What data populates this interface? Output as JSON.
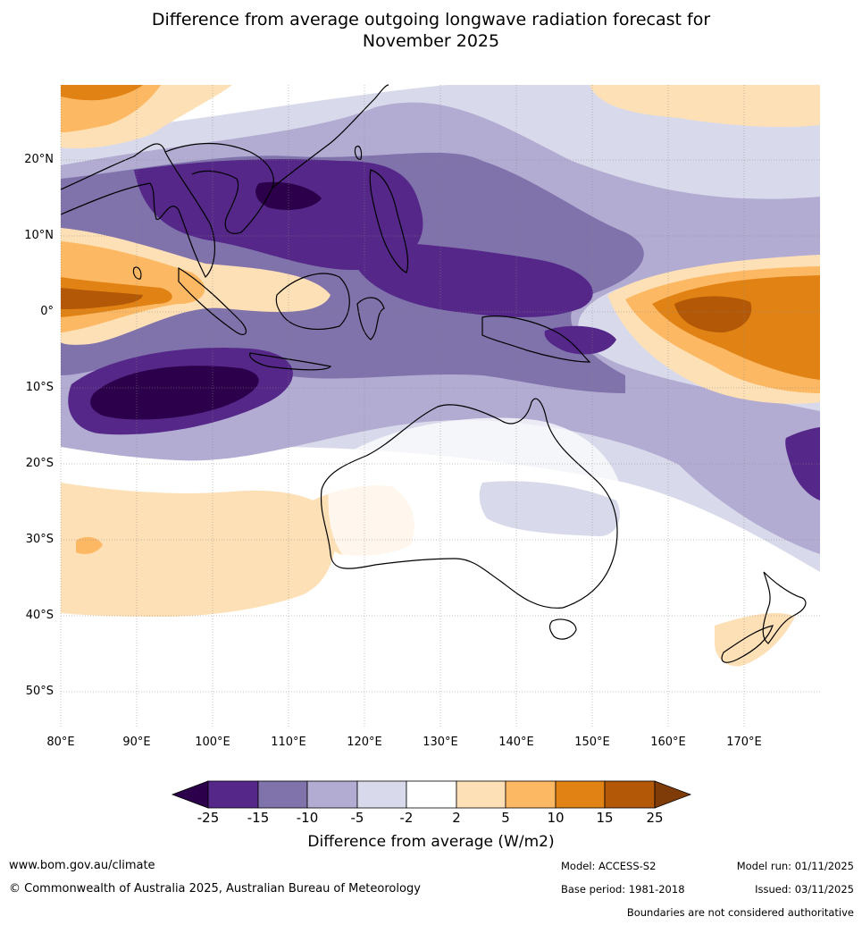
{
  "title_line1": "Difference from average outgoing longwave radiation forecast for",
  "title_line2": "November 2025",
  "lat_labels": [
    "20°N",
    "10°N",
    "0°",
    "10°S",
    "20°S",
    "30°S",
    "40°S",
    "50°S"
  ],
  "lon_labels": [
    "80°E",
    "90°E",
    "100°E",
    "110°E",
    "120°E",
    "130°E",
    "140°E",
    "150°E",
    "160°E",
    "170°E"
  ],
  "colorbar": {
    "ticks": [
      "-25",
      "-15",
      "-10",
      "-5",
      "-2",
      "2",
      "5",
      "10",
      "15",
      "25"
    ],
    "colors": [
      "#2d004b",
      "#542788",
      "#8073ac",
      "#b2abd2",
      "#d8daeb",
      "#ffffff",
      "#fee0b6",
      "#fdb863",
      "#e08214",
      "#b35806",
      "#7f3b08"
    ],
    "label": "Difference from average (W/m2)"
  },
  "footer": {
    "url": "www.bom.gov.au/climate",
    "copyright": "© Commonwealth of Australia 2025, Australian Bureau of Meteorology",
    "model": "Model: ACCESS-S2",
    "base_period": "Base period: 1981-2018",
    "model_run": "Model run: 01/11/2025",
    "issued": "Issued: 03/11/2025",
    "disclaimer": "Boundaries are not considered authoritative"
  }
}
